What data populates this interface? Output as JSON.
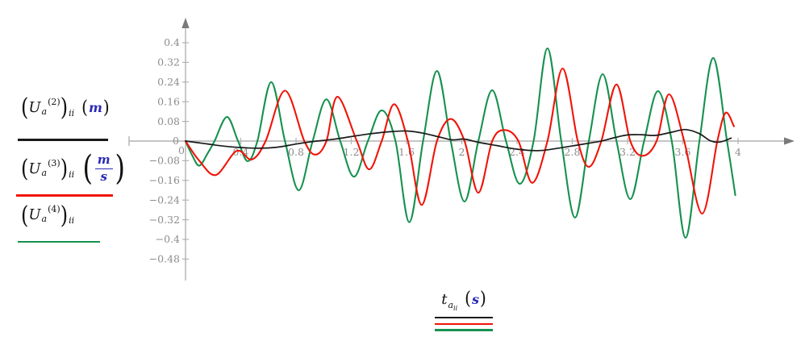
{
  "glyphs": {
    "lp": "(",
    "rp": ")"
  },
  "legend": {
    "items": [
      {
        "base": "U",
        "sub": "a",
        "sup": "(2)",
        "outer_sub": "ii",
        "unit_style": "simple",
        "unit": "m"
      },
      {
        "base": "U",
        "sub": "a",
        "sup": "(3)",
        "outer_sub": "ii",
        "unit_style": "fraction",
        "unit_num": "m",
        "unit_den": "s"
      },
      {
        "base": "U",
        "sub": "a",
        "sup": "(4)",
        "outer_sub": "ii",
        "unit_style": "none"
      }
    ],
    "unit_color": "#2a2ab5"
  },
  "xlabel": {
    "base": "t",
    "sub": "a",
    "subsub": "ii",
    "unit": "s"
  },
  "chart_data": {
    "type": "line",
    "title": "",
    "xlabel": "t_a_ii (s)",
    "ylabel": "",
    "xlim": [
      0,
      4
    ],
    "ylim": [
      -0.52,
      0.44
    ],
    "grid": false,
    "legend_position": "left",
    "axis": {
      "color": "#b2b2b2",
      "arrow_color": "#7a7a7a",
      "tick_color": "#8c8c8c"
    },
    "x_zero_label": "0",
    "y_zero_label": "0",
    "x_ticks": [
      {
        "v": 0.4,
        "label": "0.4"
      },
      {
        "v": 0.8,
        "label": "0.8"
      },
      {
        "v": 1.2,
        "label": "1.2"
      },
      {
        "v": 1.6,
        "label": "1.6"
      },
      {
        "v": 2.0,
        "label": "2"
      },
      {
        "v": 2.4,
        "label": "2.4"
      },
      {
        "v": 2.8,
        "label": "2.8"
      },
      {
        "v": 3.2,
        "label": "3.2"
      },
      {
        "v": 3.6,
        "label": "3.6"
      },
      {
        "v": 4.0,
        "label": "4"
      }
    ],
    "y_ticks": [
      {
        "v": 0.4,
        "label": "0.4"
      },
      {
        "v": 0.32,
        "label": "0.32"
      },
      {
        "v": 0.24,
        "label": "0.24"
      },
      {
        "v": 0.16,
        "label": "0.16"
      },
      {
        "v": 0.08,
        "label": "0.08"
      },
      {
        "v": -0.08,
        "label": "−0.08"
      },
      {
        "v": -0.16,
        "label": "−0.16"
      },
      {
        "v": -0.24,
        "label": "−0.24"
      },
      {
        "v": -0.32,
        "label": "−0.32"
      },
      {
        "v": -0.4,
        "label": "−0.4"
      },
      {
        "v": -0.48,
        "label": "−0.48"
      }
    ],
    "series": [
      {
        "id": "trace-green",
        "name": "(Ua^(4))ii",
        "unit": "",
        "color": "#16914f",
        "points": [
          [
            0,
            0
          ],
          [
            0.05,
            -0.06
          ],
          [
            0.1,
            -0.1
          ],
          [
            0.16,
            -0.05
          ],
          [
            0.21,
            0
          ],
          [
            0.3,
            0.098
          ],
          [
            0.38,
            0
          ],
          [
            0.45,
            -0.082
          ],
          [
            0.52,
            0
          ],
          [
            0.62,
            0.24
          ],
          [
            0.72,
            0
          ],
          [
            0.82,
            -0.2
          ],
          [
            0.92,
            0
          ],
          [
            1.02,
            0.17
          ],
          [
            1.12,
            0
          ],
          [
            1.22,
            -0.145
          ],
          [
            1.32,
            0
          ],
          [
            1.42,
            0.125
          ],
          [
            1.52,
            0
          ],
          [
            1.62,
            -0.33
          ],
          [
            1.72,
            0
          ],
          [
            1.82,
            0.285
          ],
          [
            1.92,
            0
          ],
          [
            2.02,
            -0.246
          ],
          [
            2.12,
            0
          ],
          [
            2.22,
            0.207
          ],
          [
            2.32,
            0
          ],
          [
            2.42,
            -0.174
          ],
          [
            2.52,
            0
          ],
          [
            2.62,
            0.377
          ],
          [
            2.72,
            0
          ],
          [
            2.82,
            -0.311
          ],
          [
            2.92,
            0
          ],
          [
            3.02,
            0.272
          ],
          [
            3.12,
            0
          ],
          [
            3.22,
            -0.236
          ],
          [
            3.32,
            0
          ],
          [
            3.42,
            0.203
          ],
          [
            3.52,
            0
          ],
          [
            3.62,
            -0.393
          ],
          [
            3.72,
            0
          ],
          [
            3.82,
            0.338
          ],
          [
            3.92,
            0
          ],
          [
            3.98,
            -0.22
          ]
        ]
      },
      {
        "id": "trace-red",
        "name": "(Ua^(3))ii (m/s)",
        "unit": "m/s",
        "color": "#f01408",
        "points": [
          [
            0,
            0
          ],
          [
            0.1,
            -0.08
          ],
          [
            0.22,
            -0.138
          ],
          [
            0.37,
            -0.04
          ],
          [
            0.48,
            -0.075
          ],
          [
            0.58,
            0
          ],
          [
            0.72,
            0.205
          ],
          [
            0.86,
            0
          ],
          [
            0.94,
            -0.055
          ],
          [
            1.02,
            0
          ],
          [
            1.1,
            0.18
          ],
          [
            1.24,
            0
          ],
          [
            1.33,
            -0.115
          ],
          [
            1.42,
            0
          ],
          [
            1.51,
            0.15
          ],
          [
            1.61,
            0
          ],
          [
            1.71,
            -0.26
          ],
          [
            1.82,
            0
          ],
          [
            1.92,
            0.09
          ],
          [
            2.02,
            0
          ],
          [
            2.12,
            -0.21
          ],
          [
            2.22,
            0
          ],
          [
            2.31,
            0.045
          ],
          [
            2.41,
            0
          ],
          [
            2.51,
            -0.17
          ],
          [
            2.62,
            0
          ],
          [
            2.73,
            0.295
          ],
          [
            2.84,
            0
          ],
          [
            2.92,
            -0.105
          ],
          [
            3.01,
            0
          ],
          [
            3.12,
            0.23
          ],
          [
            3.22,
            0
          ],
          [
            3.31,
            -0.06
          ],
          [
            3.41,
            0
          ],
          [
            3.5,
            0.19
          ],
          [
            3.61,
            0
          ],
          [
            3.74,
            -0.295
          ],
          [
            3.85,
            0
          ],
          [
            3.91,
            0.115
          ],
          [
            3.97,
            0.06
          ]
        ]
      },
      {
        "id": "trace-black",
        "name": "(Ua^(2))ii (m)",
        "unit": "m",
        "color": "#1a1a1a",
        "points": [
          [
            0,
            0
          ],
          [
            0.15,
            -0.011
          ],
          [
            0.3,
            -0.022
          ],
          [
            0.5,
            -0.029
          ],
          [
            0.65,
            -0.026
          ],
          [
            0.8,
            -0.012
          ],
          [
            0.92,
            -0.002
          ],
          [
            1.02,
            0.004
          ],
          [
            1.12,
            0.011
          ],
          [
            1.3,
            0.027
          ],
          [
            1.48,
            0.038
          ],
          [
            1.6,
            0.041
          ],
          [
            1.72,
            0.032
          ],
          [
            1.85,
            0.015
          ],
          [
            1.93,
            0.005
          ],
          [
            2.02,
            0.008
          ],
          [
            2.12,
            -0.005
          ],
          [
            2.25,
            -0.018
          ],
          [
            2.4,
            -0.033
          ],
          [
            2.55,
            -0.039
          ],
          [
            2.7,
            -0.029
          ],
          [
            2.85,
            -0.015
          ],
          [
            3.0,
            -0.001
          ],
          [
            3.1,
            0.013
          ],
          [
            3.2,
            0.025
          ],
          [
            3.3,
            0.026
          ],
          [
            3.4,
            0.023
          ],
          [
            3.52,
            0.036
          ],
          [
            3.62,
            0.047
          ],
          [
            3.72,
            0.03
          ],
          [
            3.8,
            0.001
          ],
          [
            3.87,
            -0.004
          ],
          [
            3.95,
            0.012
          ]
        ]
      }
    ],
    "legend_order_colors": {
      "black_sample": 2,
      "red_sample": 1,
      "green_sample": 0
    }
  }
}
